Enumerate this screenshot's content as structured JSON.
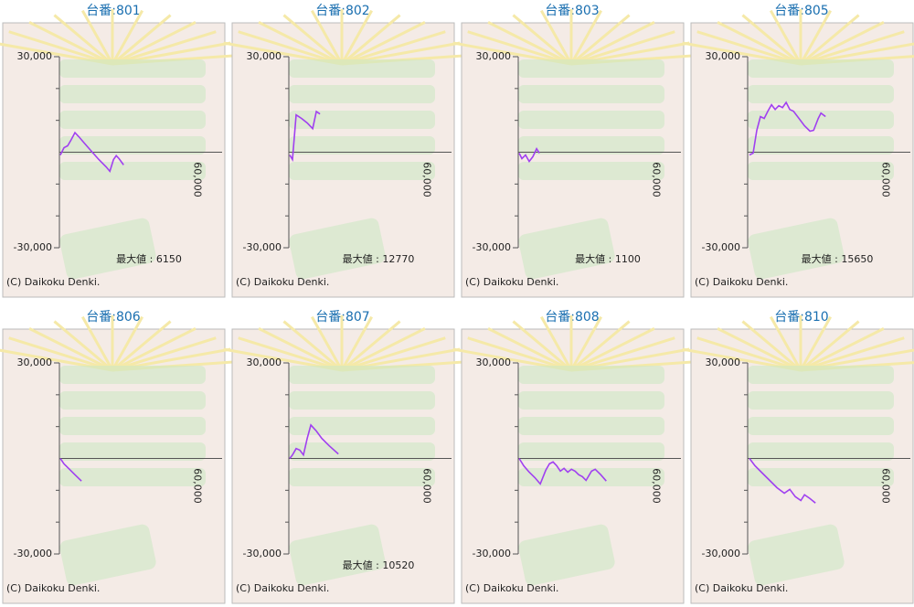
{
  "chart_data": [
    {
      "type": "line",
      "title": "台番:801",
      "annotation": "最大値 : 6150",
      "footer": "(C) Daikoku Denki.",
      "color": "#a040f0",
      "xlim": [
        0,
        71000
      ],
      "ylim": [
        -30000,
        30000
      ],
      "xticks": [
        {
          "value": 60000,
          "label": "60,000"
        }
      ],
      "yticks": [
        {
          "value": 30000,
          "label": "30,000"
        },
        {
          "value": -30000,
          "label": "-30,000"
        }
      ],
      "yminor": [
        -20000,
        -10000,
        10000,
        20000
      ],
      "x": [
        400,
        2000,
        3600,
        5200,
        6800,
        8400,
        10800,
        14000,
        17200,
        20400,
        22000,
        23600,
        24800,
        26000,
        28000
      ],
      "values": [
        -900,
        1400,
        2000,
        4000,
        6150,
        4900,
        2900,
        300,
        -2300,
        -4600,
        -6000,
        -2300,
        -1100,
        -2000,
        -4000
      ]
    },
    {
      "type": "line",
      "title": "台番:802",
      "annotation": "最大値 : 12770",
      "footer": "(C) Daikoku Denki.",
      "color": "#a040f0",
      "xlim": [
        0,
        71000
      ],
      "ylim": [
        -30000,
        30000
      ],
      "xticks": [
        {
          "value": 60000,
          "label": "60,000"
        }
      ],
      "yticks": [
        {
          "value": 30000,
          "label": "30,000"
        },
        {
          "value": -30000,
          "label": "-30,000"
        }
      ],
      "yminor": [
        -20000,
        -10000,
        10000,
        20000
      ],
      "x": [
        400,
        1600,
        3200,
        5600,
        8000,
        10400,
        12000,
        13600
      ],
      "values": [
        -900,
        -2300,
        11700,
        10600,
        9200,
        7400,
        12770,
        12000
      ]
    },
    {
      "type": "line",
      "title": "台番:803",
      "annotation": "最大値 : 1100",
      "footer": "(C) Daikoku Denki.",
      "color": "#a040f0",
      "xlim": [
        0,
        71000
      ],
      "ylim": [
        -30000,
        30000
      ],
      "xticks": [
        {
          "value": 60000,
          "label": "60,000"
        }
      ],
      "yticks": [
        {
          "value": 30000,
          "label": "30,000"
        },
        {
          "value": -30000,
          "label": "-30,000"
        }
      ],
      "yminor": [
        -20000,
        -10000,
        10000,
        20000
      ],
      "x": [
        400,
        1600,
        3200,
        4800,
        6400,
        8000,
        9200
      ],
      "values": [
        -300,
        -2000,
        -900,
        -2900,
        -1400,
        1100,
        -300
      ]
    },
    {
      "type": "line",
      "title": "台番:805",
      "annotation": "最大値 : 15650",
      "footer": "(C) Daikoku Denki.",
      "color": "#a040f0",
      "xlim": [
        0,
        71000
      ],
      "ylim": [
        -30000,
        30000
      ],
      "xticks": [
        {
          "value": 60000,
          "label": "60,000"
        }
      ],
      "yticks": [
        {
          "value": 30000,
          "label": "30,000"
        },
        {
          "value": -30000,
          "label": "-30,000"
        }
      ],
      "yminor": [
        -20000,
        -10000,
        10000,
        20000
      ],
      "x": [
        800,
        2400,
        4000,
        5600,
        7200,
        8800,
        10400,
        12000,
        13600,
        15200,
        16800,
        18400,
        20000,
        22400,
        24800,
        27200,
        28800,
        30800,
        32000,
        34000
      ],
      "values": [
        -900,
        -300,
        6900,
        11200,
        10600,
        12900,
        14900,
        13400,
        14600,
        14000,
        15650,
        13400,
        12900,
        10600,
        8300,
        6600,
        6900,
        10600,
        12300,
        11200
      ]
    },
    {
      "type": "line",
      "title": "台番:806",
      "footer": "(C) Daikoku Denki.",
      "color": "#a040f0",
      "xlim": [
        0,
        71000
      ],
      "ylim": [
        -30000,
        30000
      ],
      "xticks": [
        {
          "value": 60000,
          "label": "60,000"
        }
      ],
      "yticks": [
        {
          "value": 30000,
          "label": "30,000"
        },
        {
          "value": -30000,
          "label": "-30,000"
        }
      ],
      "yminor": [
        -20000,
        -10000,
        10000,
        20000
      ],
      "x": [
        400,
        2000,
        4400,
        6800,
        9600
      ],
      "values": [
        0,
        -1700,
        -3400,
        -5100,
        -7100
      ]
    },
    {
      "type": "line",
      "title": "台番:807",
      "annotation": "最大値 : 10520",
      "footer": "(C) Daikoku Denki.",
      "color": "#a040f0",
      "xlim": [
        0,
        71000
      ],
      "ylim": [
        -30000,
        30000
      ],
      "xticks": [
        {
          "value": 60000,
          "label": "60,000"
        }
      ],
      "yticks": [
        {
          "value": 30000,
          "label": "30,000"
        },
        {
          "value": -30000,
          "label": "-30,000"
        }
      ],
      "yminor": [
        -20000,
        -10000,
        10000,
        20000
      ],
      "x": [
        400,
        1600,
        3200,
        4800,
        6400,
        8000,
        9600,
        12000,
        14400,
        17600,
        21600
      ],
      "values": [
        0,
        1100,
        3100,
        2600,
        1100,
        6300,
        10520,
        8600,
        6300,
        4000,
        1400
      ]
    },
    {
      "type": "line",
      "title": "台番:808",
      "footer": "(C) Daikoku Denki.",
      "color": "#a040f0",
      "xlim": [
        0,
        71000
      ],
      "ylim": [
        -30000,
        30000
      ],
      "xticks": [
        {
          "value": 60000,
          "label": "60,000"
        }
      ],
      "yticks": [
        {
          "value": 30000,
          "label": "30,000"
        },
        {
          "value": -30000,
          "label": "-30,000"
        }
      ],
      "yminor": [
        -20000,
        -10000,
        10000,
        20000
      ],
      "x": [
        400,
        2400,
        4800,
        7200,
        9600,
        12000,
        13600,
        15200,
        16800,
        18400,
        20000,
        21600,
        23200,
        24800,
        26400,
        28000,
        29600,
        32000,
        33600,
        36000,
        38400
      ],
      "values": [
        0,
        -2300,
        -4300,
        -6000,
        -8000,
        -3700,
        -1700,
        -1100,
        -2300,
        -4000,
        -3100,
        -4300,
        -3400,
        -4000,
        -5100,
        -5700,
        -6900,
        -4000,
        -3400,
        -5100,
        -7100
      ]
    },
    {
      "type": "line",
      "title": "台番:810",
      "footer": "(C) Daikoku Denki.",
      "color": "#a040f0",
      "xlim": [
        0,
        71000
      ],
      "ylim": [
        -30000,
        30000
      ],
      "xticks": [
        {
          "value": 60000,
          "label": "60,000"
        }
      ],
      "yticks": [
        {
          "value": 30000,
          "label": "30,000"
        },
        {
          "value": -30000,
          "label": "-30,000"
        }
      ],
      "yminor": [
        -20000,
        -10000,
        10000,
        20000
      ],
      "x": [
        800,
        3200,
        6400,
        9600,
        12800,
        16000,
        18400,
        20800,
        23200,
        24800,
        27200,
        29600
      ],
      "values": [
        0,
        -2300,
        -4600,
        -6900,
        -9200,
        -10900,
        -9700,
        -12000,
        -13200,
        -11400,
        -12600,
        -14000
      ]
    }
  ]
}
